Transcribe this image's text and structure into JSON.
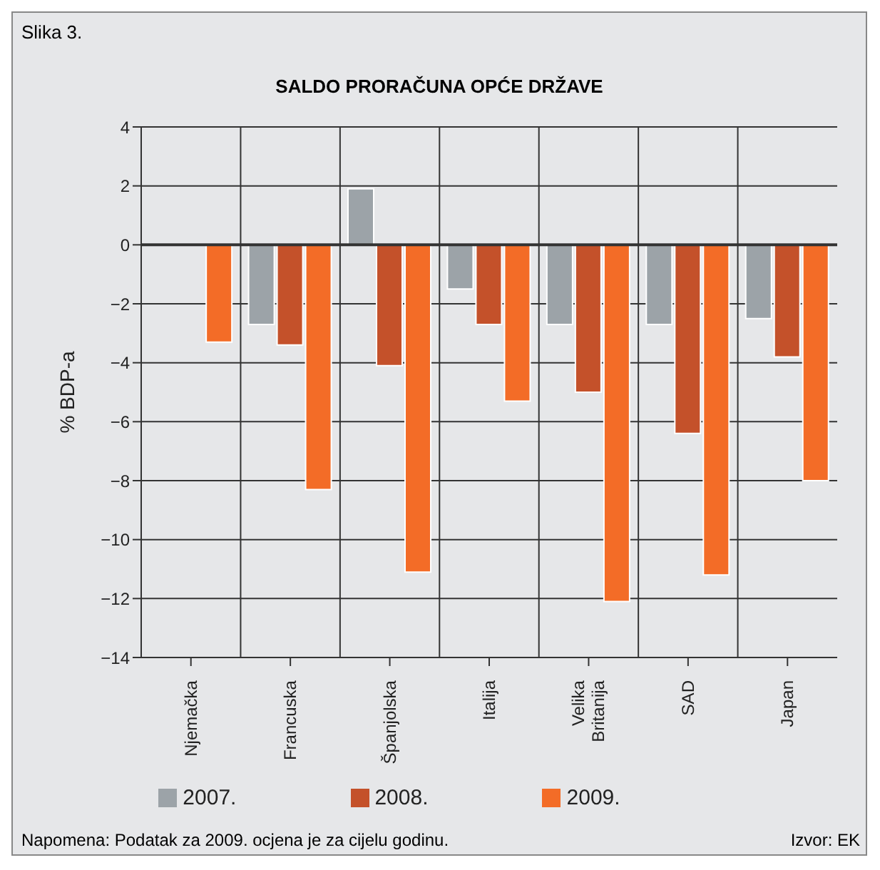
{
  "chart_data": {
    "type": "bar",
    "title": "SALDO PRORAČUNA OPĆE DRŽAVE",
    "ylabel": "% BDP-a",
    "annotations": [
      "Slika 3.",
      "Napomena: Podatak za 2009. ocjena je za cijelu godinu.",
      "Izvor: EK"
    ],
    "categories": [
      "Njemačka",
      "Francuska",
      "Španjolska",
      "Italija",
      "Velika Britanija",
      "SAD",
      "Japan"
    ],
    "series": [
      {
        "name": "2007.",
        "color": "#9ca3a8",
        "values": [
          null,
          -2.7,
          1.9,
          -1.5,
          -2.7,
          -2.7,
          -2.5
        ]
      },
      {
        "name": "2008.",
        "color": "#c4512a",
        "values": [
          0,
          -3.4,
          -4.1,
          -2.7,
          -5.0,
          -6.4,
          -3.8
        ]
      },
      {
        "name": "2009.",
        "color": "#f36c27",
        "values": [
          -3.3,
          -8.3,
          -11.1,
          -5.3,
          -12.1,
          -11.2,
          -8.0
        ]
      }
    ],
    "ylim": [
      -14,
      4
    ],
    "yticks": [
      -14,
      -12,
      -10,
      -8,
      -6,
      -4,
      -2,
      0,
      2,
      4
    ],
    "grid": true,
    "legend": "bottom"
  }
}
